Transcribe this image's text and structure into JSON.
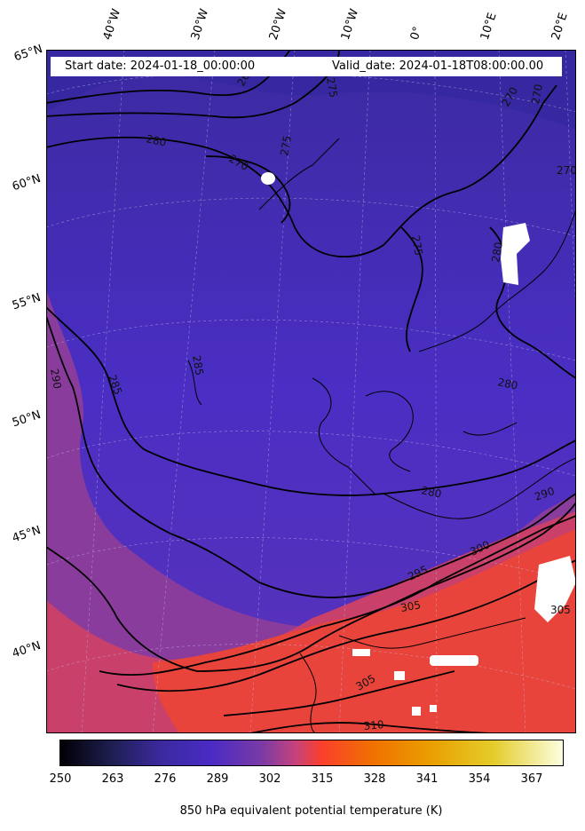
{
  "map": {
    "start_date_label": "Start date: 2024-01-18_00:00:00",
    "valid_date_label": "Valid_date: 2024-01-18T08:00:00.00",
    "longitude_labels": [
      "40°W",
      "30°W",
      "20°W",
      "10°W",
      "0°",
      "10°E",
      "20°E"
    ],
    "latitude_labels": [
      "65°N",
      "60°N",
      "55°N",
      "50°N",
      "45°N",
      "40°N"
    ],
    "contour_labels": [
      "265",
      "275",
      "280",
      "270",
      "270",
      "275",
      "270",
      "275",
      "280",
      "270",
      "290",
      "285",
      "285",
      "280",
      "280",
      "290",
      "300",
      "295",
      "305",
      "305",
      "305",
      "310"
    ]
  },
  "colorbar": {
    "label": "850 hPa equivalent potential temperature (K)",
    "ticks": [
      "250",
      "263",
      "276",
      "289",
      "302",
      "315",
      "328",
      "341",
      "354",
      "367"
    ],
    "colormap": [
      "#000004",
      "#1d1e4f",
      "#3b2a9e",
      "#4a2bc4",
      "#7a3aa6",
      "#c8427a",
      "#fb3f2c",
      "#f07000",
      "#e9a000",
      "#e4cc2a",
      "#fcfee0"
    ]
  },
  "colors": {
    "cold_region": "#4a2fc0",
    "warm_region": "#e8443c",
    "contour": "#000000"
  }
}
